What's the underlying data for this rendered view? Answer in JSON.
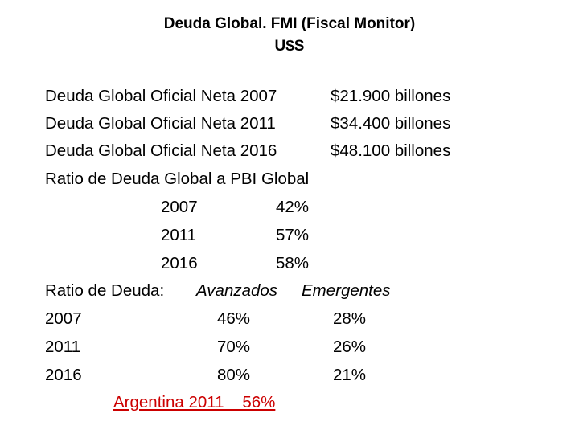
{
  "title": {
    "line1": "Deuda Global. FMI (Fiscal Monitor)",
    "line2": "U$S"
  },
  "global_debt": [
    {
      "label": "Deuda Global Oficial Neta 2007",
      "value": "$21.900 billones"
    },
    {
      "label": "Deuda Global Oficial Neta 2011",
      "value": "$34.400 billones"
    },
    {
      "label": "Deuda Global Oficial Neta 2016",
      "value": "$48.100 billones"
    }
  ],
  "gdp_ratio": {
    "heading": "Ratio de Deuda Global a PBI Global",
    "rows": [
      {
        "year": "2007",
        "pct": "42%"
      },
      {
        "year": "2011",
        "pct": "57%"
      },
      {
        "year": "2016",
        "pct": "58%"
      }
    ]
  },
  "debt_ratio": {
    "heading": "Ratio de Deuda:",
    "col_advanced": "Avanzados",
    "col_emerging": "Emergentes",
    "rows": [
      {
        "year": "2007",
        "advanced": "46%",
        "emerging": "28%"
      },
      {
        "year": "2011",
        "advanced": "70%",
        "emerging": "26%"
      },
      {
        "year": "2016",
        "advanced": "80%",
        "emerging": "21%"
      }
    ]
  },
  "argentina": "Argentina 2011    56%",
  "colors": {
    "text": "#000000",
    "highlight": "#cc0000",
    "background": "#ffffff"
  }
}
